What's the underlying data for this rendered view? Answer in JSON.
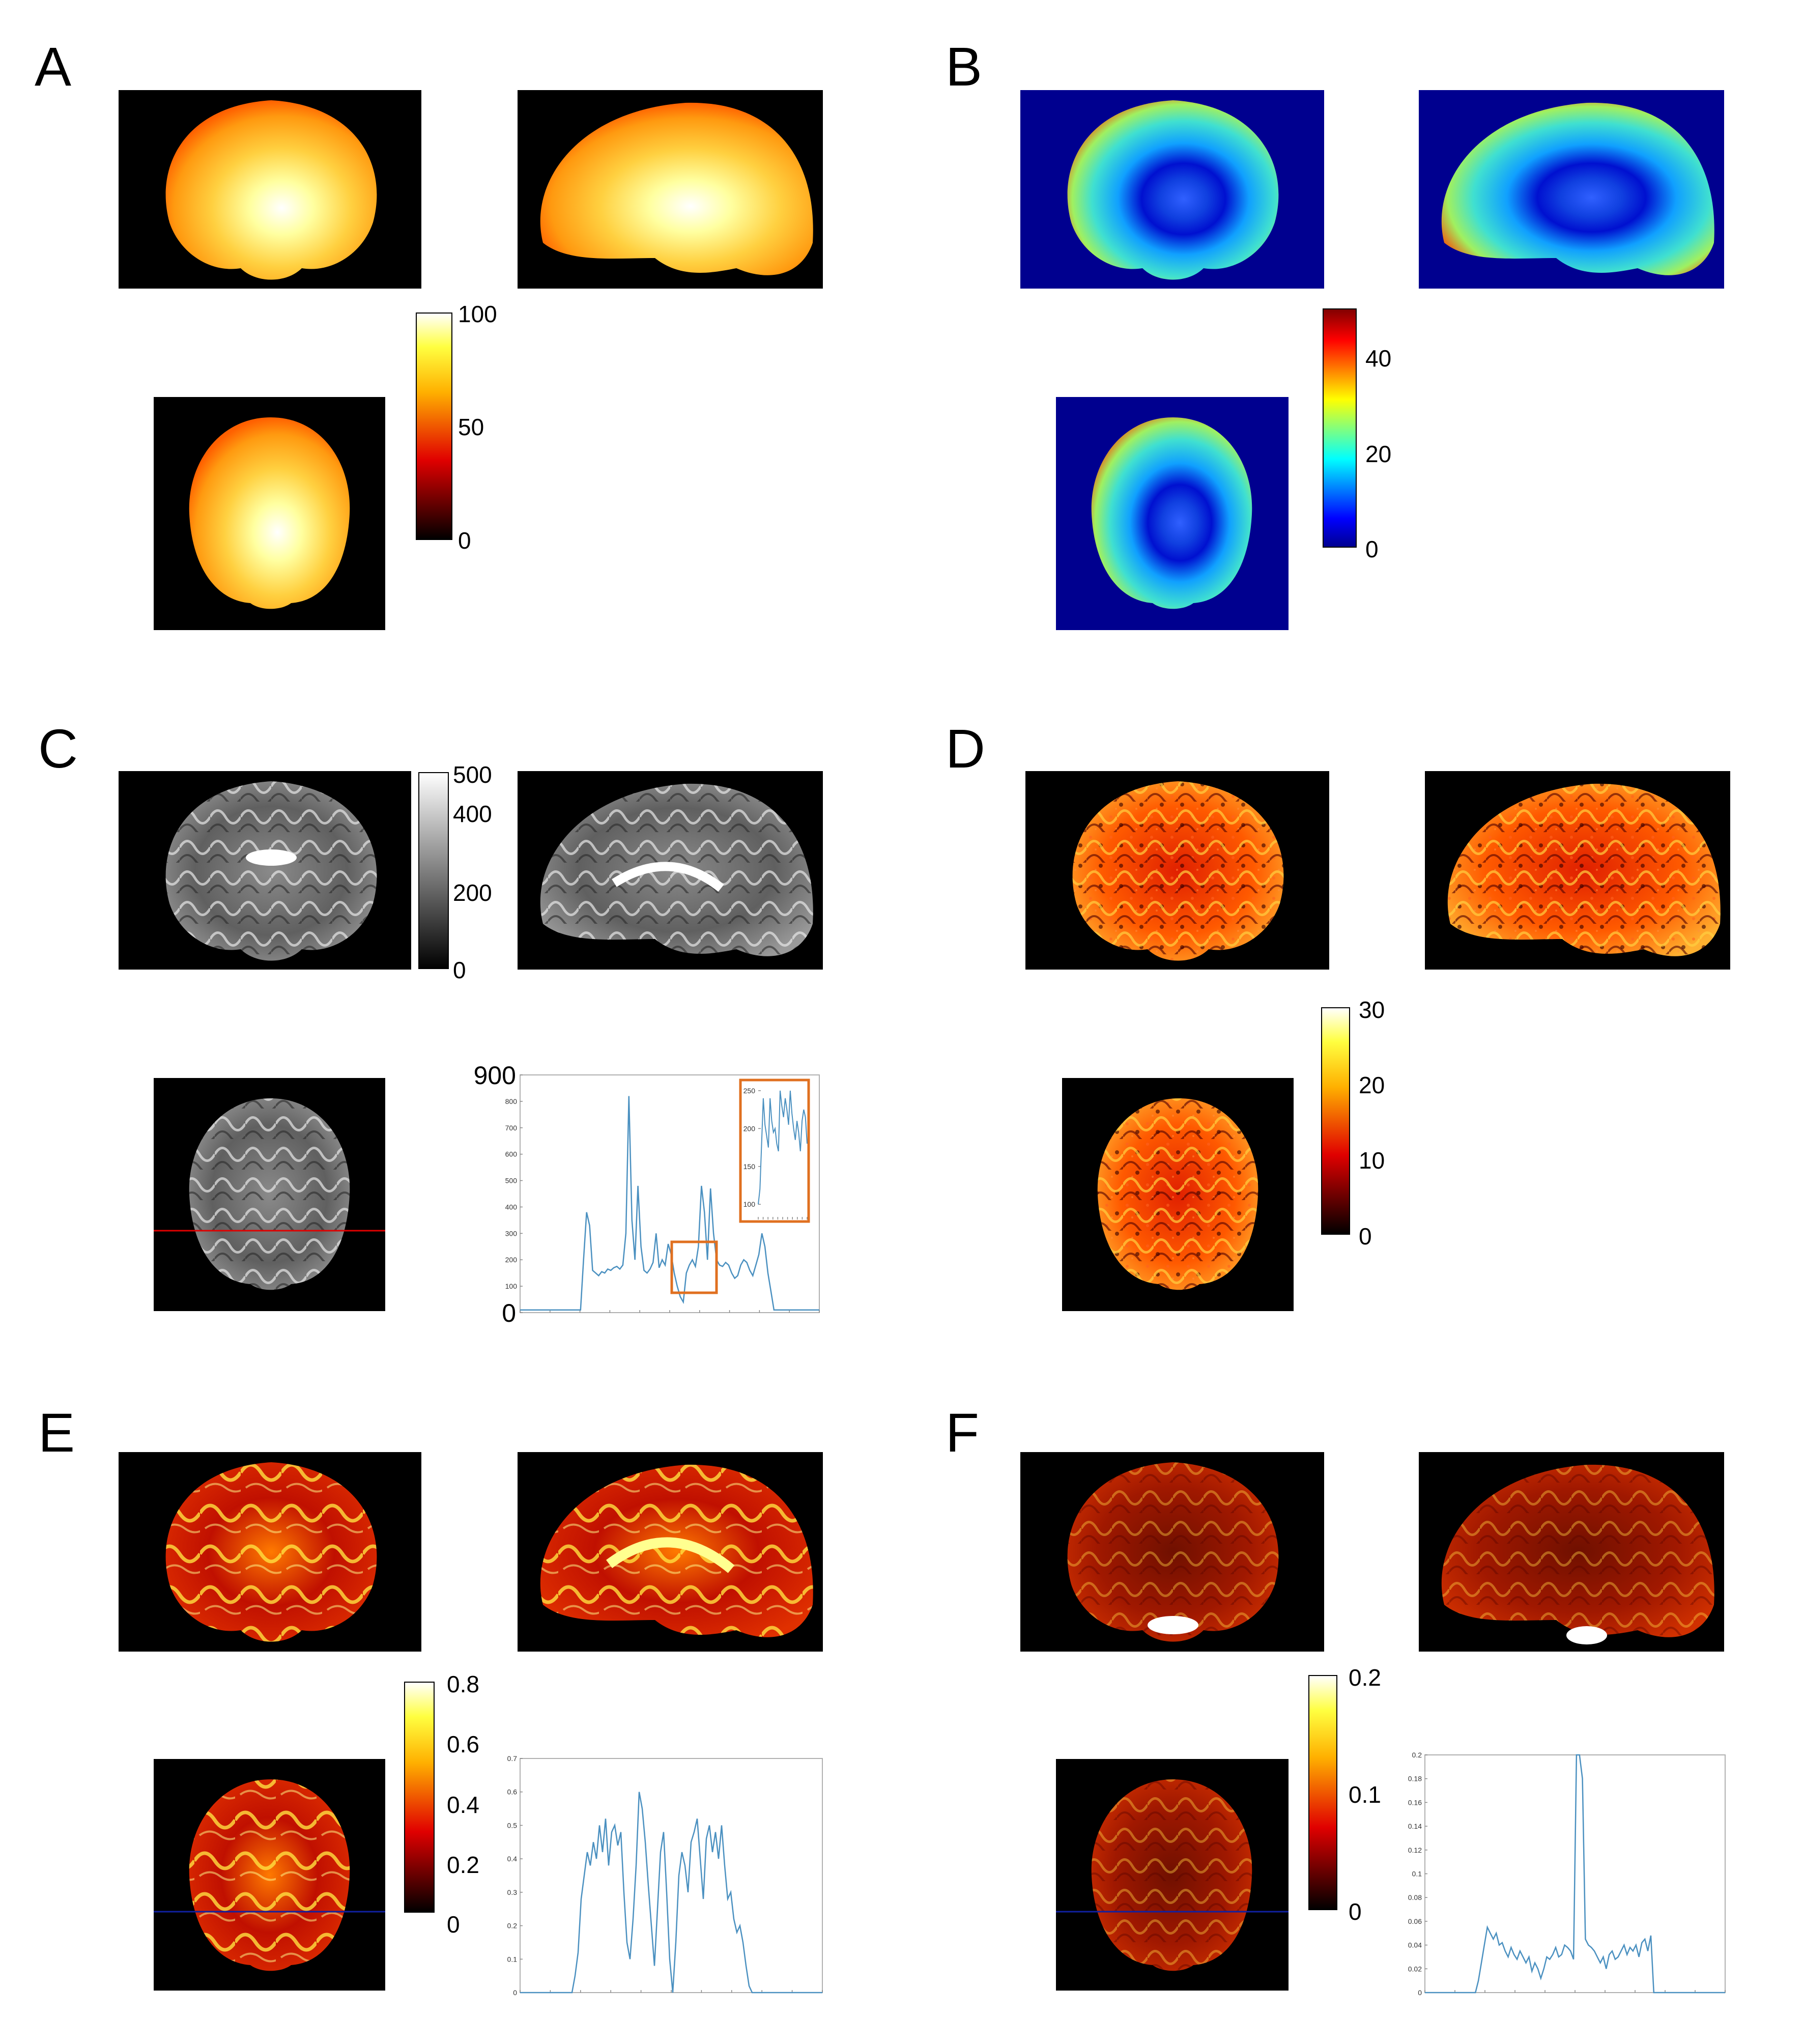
{
  "panels": [
    {
      "label": "A",
      "colormap": "hot",
      "colorbar_ticks": [
        "100",
        "50",
        "0"
      ]
    },
    {
      "label": "B",
      "colormap": "jet",
      "colorbar_ticks": [
        "40",
        "20",
        "0"
      ]
    },
    {
      "label": "C",
      "colormap": "gray",
      "colorbar_ticks": [
        "500",
        "400",
        "200",
        "0"
      ]
    },
    {
      "label": "D",
      "colormap": "hot",
      "colorbar_ticks": [
        "30",
        "20",
        "10",
        "0"
      ]
    },
    {
      "label": "E",
      "colormap": "hot",
      "colorbar_ticks": [
        "0.8",
        "0.6",
        "0.4",
        "0.2",
        "0"
      ]
    },
    {
      "label": "F",
      "colormap": "hot",
      "colorbar_ticks": [
        "0.2",
        "0.1",
        "0"
      ]
    }
  ],
  "chart_data": [
    {
      "type": "line",
      "panel": "C",
      "ylim": [
        0,
        900
      ],
      "y_ticks": [
        "900",
        "800",
        "700",
        "600",
        "500",
        "400",
        "300",
        "200",
        "100",
        "0"
      ],
      "values": [
        10,
        10,
        10,
        10,
        10,
        10,
        10,
        10,
        10,
        10,
        10,
        10,
        10,
        10,
        10,
        10,
        10,
        10,
        10,
        10,
        10,
        200,
        380,
        330,
        160,
        150,
        140,
        155,
        150,
        165,
        160,
        170,
        175,
        165,
        180,
        300,
        820,
        350,
        200,
        480,
        250,
        160,
        150,
        165,
        190,
        300,
        170,
        200,
        180,
        260,
        220,
        150,
        100,
        60,
        40,
        150,
        180,
        200,
        175,
        250,
        480,
        380,
        200,
        470,
        300,
        200,
        180,
        175,
        190,
        180,
        150,
        130,
        140,
        180,
        200,
        190,
        160,
        140,
        180,
        220,
        300,
        250,
        150,
        80,
        10,
        10,
        10,
        10,
        10,
        10,
        10,
        10,
        10,
        10,
        10,
        10,
        10,
        10,
        10,
        10
      ],
      "inset": {
        "y_ticks": [
          "250",
          "200",
          "150",
          "100"
        ],
        "ylim": [
          80,
          260
        ],
        "values": [
          100,
          120,
          180,
          240,
          205,
          190,
          175,
          240,
          210,
          195,
          200,
          180,
          170,
          250,
          230,
          215,
          240,
          225,
          205,
          250,
          220,
          200,
          185,
          210,
          195,
          170,
          210,
          225,
          215,
          180
        ]
      }
    },
    {
      "type": "line",
      "panel": "E",
      "ylim": [
        0,
        0.7
      ],
      "y_ticks": [
        "0.7",
        "0.6",
        "0.5",
        "0.4",
        "0.3",
        "0.2",
        "0.1",
        "0"
      ],
      "values": [
        0,
        0,
        0,
        0,
        0,
        0,
        0,
        0,
        0,
        0,
        0,
        0,
        0,
        0,
        0,
        0,
        0,
        0,
        0.05,
        0.12,
        0.28,
        0.35,
        0.42,
        0.38,
        0.45,
        0.4,
        0.5,
        0.42,
        0.52,
        0.38,
        0.48,
        0.5,
        0.44,
        0.48,
        0.3,
        0.15,
        0.1,
        0.22,
        0.38,
        0.6,
        0.55,
        0.45,
        0.32,
        0.2,
        0.08,
        0.25,
        0.42,
        0.48,
        0.3,
        0.1,
        0,
        0.15,
        0.35,
        0.42,
        0.38,
        0.3,
        0.45,
        0.48,
        0.52,
        0.4,
        0.28,
        0.46,
        0.5,
        0.42,
        0.48,
        0.4,
        0.5,
        0.38,
        0.28,
        0.3,
        0.22,
        0.18,
        0.2,
        0.15,
        0.08,
        0.02,
        0,
        0,
        0,
        0,
        0,
        0,
        0,
        0,
        0,
        0,
        0,
        0,
        0,
        0,
        0,
        0,
        0,
        0,
        0,
        0,
        0,
        0,
        0,
        0
      ]
    },
    {
      "type": "line",
      "panel": "F",
      "ylim": [
        0,
        0.2
      ],
      "y_ticks": [
        "0.2",
        "0.18",
        "0.16",
        "0.14",
        "0.12",
        "0.1",
        "0.08",
        "0.06",
        "0.04",
        "0.02",
        "0"
      ],
      "values": [
        0,
        0,
        0,
        0,
        0,
        0,
        0,
        0,
        0,
        0,
        0,
        0,
        0,
        0,
        0,
        0,
        0,
        0,
        0.01,
        0.025,
        0.04,
        0.055,
        0.05,
        0.045,
        0.05,
        0.04,
        0.042,
        0.035,
        0.03,
        0.038,
        0.032,
        0.028,
        0.035,
        0.03,
        0.025,
        0.03,
        0.018,
        0.025,
        0.02,
        0.012,
        0.02,
        0.03,
        0.028,
        0.032,
        0.038,
        0.03,
        0.032,
        0.04,
        0.038,
        0.035,
        0.028,
        0.2,
        0.2,
        0.18,
        0.045,
        0.04,
        0.038,
        0.035,
        0.03,
        0.025,
        0.03,
        0.02,
        0.032,
        0.035,
        0.028,
        0.03,
        0.035,
        0.04,
        0.032,
        0.038,
        0.035,
        0.04,
        0.03,
        0.042,
        0.045,
        0.035,
        0.048,
        0,
        0,
        0,
        0,
        0,
        0,
        0,
        0,
        0,
        0,
        0,
        0,
        0,
        0,
        0,
        0,
        0,
        0,
        0,
        0,
        0,
        0,
        0,
        0,
        0
      ]
    }
  ]
}
